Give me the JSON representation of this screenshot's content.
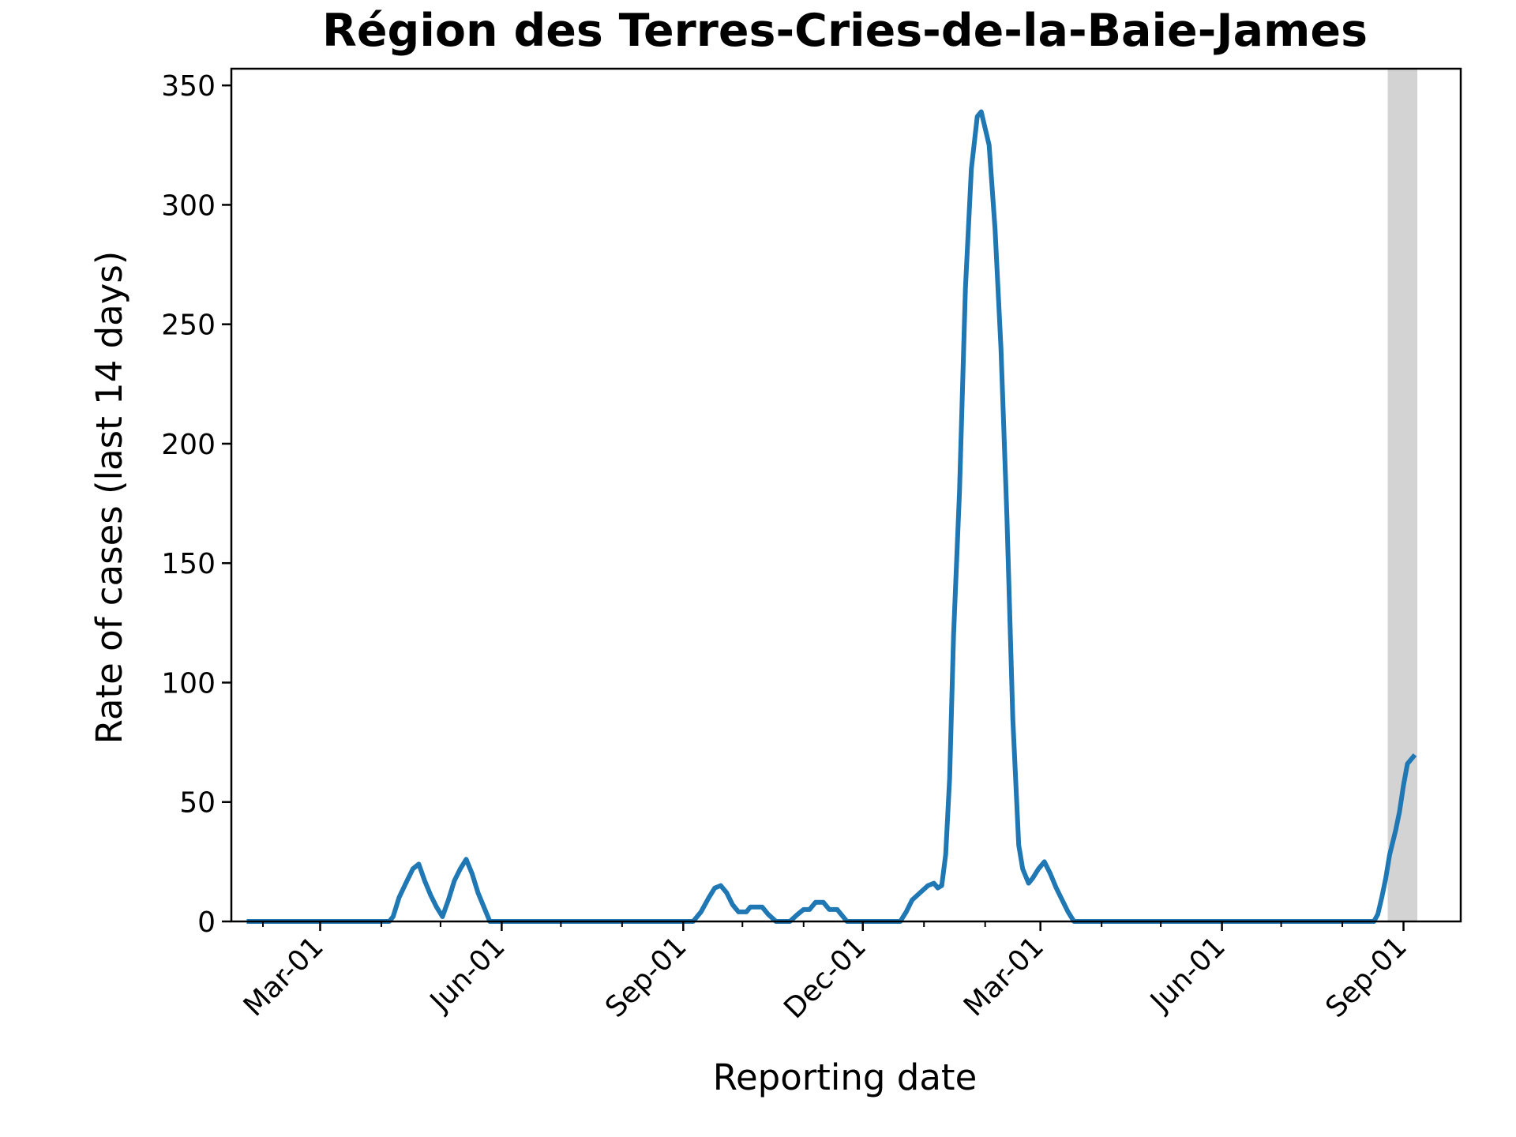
{
  "chart_data": {
    "type": "line",
    "title": "Région des Terres-Cries-de-la-Baie-James",
    "xlabel": "Reporting date",
    "ylabel": "Rate of cases (last 14 days)",
    "ylim": [
      0,
      357
    ],
    "xlim": [
      "2020-01-16",
      "2021-09-30"
    ],
    "y_ticks": [
      0,
      50,
      100,
      150,
      200,
      250,
      300,
      350
    ],
    "x_ticks": [
      {
        "date": "2020-03-01",
        "label": "Mar-01"
      },
      {
        "date": "2020-06-01",
        "label": "Jun-01"
      },
      {
        "date": "2020-09-01",
        "label": "Sep-01"
      },
      {
        "date": "2020-12-01",
        "label": "Dec-01"
      },
      {
        "date": "2021-03-01",
        "label": "Mar-01"
      },
      {
        "date": "2021-06-01",
        "label": "Jun-01"
      },
      {
        "date": "2021-09-01",
        "label": "Sep-01"
      }
    ],
    "x_minor_ticks": [
      "2020-02-01",
      "2020-04-01",
      "2020-05-01",
      "2020-07-01",
      "2020-08-01",
      "2020-10-01",
      "2020-11-01",
      "2021-01-01",
      "2021-02-01",
      "2021-04-01",
      "2021-05-01",
      "2021-07-01",
      "2021-08-01"
    ],
    "shaded_region": {
      "start": "2021-08-24",
      "end": "2021-09-08",
      "color": "#d3d3d3"
    },
    "grid": false,
    "series": [
      {
        "color": "#1f77b4",
        "points": [
          [
            "2020-01-25",
            0
          ],
          [
            "2020-02-15",
            0
          ],
          [
            "2020-03-15",
            0
          ],
          [
            "2020-04-05",
            0
          ],
          [
            "2020-04-07",
            2
          ],
          [
            "2020-04-10",
            10
          ],
          [
            "2020-04-14",
            17
          ],
          [
            "2020-04-17",
            22
          ],
          [
            "2020-04-20",
            24
          ],
          [
            "2020-04-23",
            17
          ],
          [
            "2020-04-26",
            11
          ],
          [
            "2020-04-29",
            6
          ],
          [
            "2020-05-02",
            2
          ],
          [
            "2020-05-05",
            9
          ],
          [
            "2020-05-08",
            17
          ],
          [
            "2020-05-11",
            22
          ],
          [
            "2020-05-14",
            26
          ],
          [
            "2020-05-17",
            20
          ],
          [
            "2020-05-20",
            12
          ],
          [
            "2020-05-23",
            6
          ],
          [
            "2020-05-26",
            0
          ],
          [
            "2020-06-15",
            0
          ],
          [
            "2020-07-15",
            0
          ],
          [
            "2020-08-15",
            0
          ],
          [
            "2020-09-06",
            0
          ],
          [
            "2020-09-10",
            4
          ],
          [
            "2020-09-14",
            10
          ],
          [
            "2020-09-17",
            14
          ],
          [
            "2020-09-20",
            15
          ],
          [
            "2020-09-23",
            12
          ],
          [
            "2020-09-26",
            7
          ],
          [
            "2020-09-29",
            4
          ],
          [
            "2020-10-03",
            4
          ],
          [
            "2020-10-05",
            6
          ],
          [
            "2020-10-11",
            6
          ],
          [
            "2020-10-14",
            3
          ],
          [
            "2020-10-18",
            0
          ],
          [
            "2020-10-25",
            0
          ],
          [
            "2020-10-29",
            3
          ],
          [
            "2020-11-01",
            5
          ],
          [
            "2020-11-04",
            5
          ],
          [
            "2020-11-07",
            8
          ],
          [
            "2020-11-11",
            8
          ],
          [
            "2020-11-14",
            5
          ],
          [
            "2020-11-18",
            5
          ],
          [
            "2020-11-23",
            0
          ],
          [
            "2020-12-15",
            0
          ],
          [
            "2020-12-20",
            0
          ],
          [
            "2020-12-23",
            4
          ],
          [
            "2020-12-26",
            9
          ],
          [
            "2020-12-30",
            12
          ],
          [
            "2021-01-03",
            15
          ],
          [
            "2021-01-06",
            16
          ],
          [
            "2021-01-08",
            14
          ],
          [
            "2021-01-10",
            15
          ],
          [
            "2021-01-12",
            28
          ],
          [
            "2021-01-14",
            60
          ],
          [
            "2021-01-16",
            120
          ],
          [
            "2021-01-19",
            180
          ],
          [
            "2021-01-22",
            265
          ],
          [
            "2021-01-25",
            315
          ],
          [
            "2021-01-28",
            337
          ],
          [
            "2021-01-30",
            339
          ],
          [
            "2021-02-01",
            332
          ],
          [
            "2021-02-03",
            325
          ],
          [
            "2021-02-06",
            290
          ],
          [
            "2021-02-09",
            240
          ],
          [
            "2021-02-12",
            170
          ],
          [
            "2021-02-15",
            85
          ],
          [
            "2021-02-18",
            32
          ],
          [
            "2021-02-20",
            22
          ],
          [
            "2021-02-23",
            16
          ],
          [
            "2021-02-25",
            18
          ],
          [
            "2021-02-28",
            22
          ],
          [
            "2021-03-03",
            25
          ],
          [
            "2021-03-06",
            20
          ],
          [
            "2021-03-09",
            14
          ],
          [
            "2021-03-12",
            9
          ],
          [
            "2021-03-15",
            4
          ],
          [
            "2021-03-18",
            0
          ],
          [
            "2021-04-15",
            0
          ],
          [
            "2021-05-15",
            0
          ],
          [
            "2021-06-15",
            0
          ],
          [
            "2021-07-15",
            0
          ],
          [
            "2021-08-17",
            0
          ],
          [
            "2021-08-19",
            3
          ],
          [
            "2021-08-21",
            10
          ],
          [
            "2021-08-23",
            18
          ],
          [
            "2021-08-25",
            28
          ],
          [
            "2021-08-28",
            38
          ],
          [
            "2021-08-30",
            46
          ],
          [
            "2021-09-01",
            57
          ],
          [
            "2021-09-03",
            66
          ],
          [
            "2021-09-06",
            69
          ]
        ]
      }
    ]
  }
}
